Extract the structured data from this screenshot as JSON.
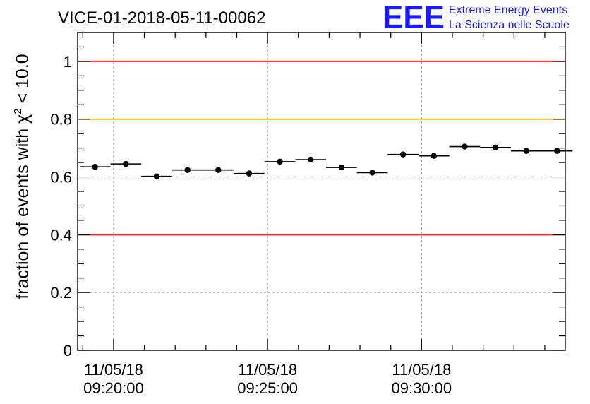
{
  "chart_data": {
    "type": "scatter",
    "title": "VICE-01-2018-05-11-00062",
    "ylabel_text": "fraction of events with ",
    "ylabel_symbol": "χ",
    "ylabel_sup": "2",
    "ylabel_tail": " < 10.0",
    "ylim": [
      0,
      1.1
    ],
    "y_ticks": [
      "0",
      "0.2",
      "0.4",
      "0.6",
      "0.8",
      "1"
    ],
    "x_ticks": [
      {
        "date": "11/05/18",
        "time": "09:20:00"
      },
      {
        "date": "11/05/18",
        "time": "09:25:00"
      },
      {
        "date": "11/05/18",
        "time": "09:30:00"
      }
    ],
    "grid": true,
    "reference_lines": [
      {
        "y": 1.0,
        "color": "#e8251f"
      },
      {
        "y": 0.8,
        "color": "#ffc20e"
      },
      {
        "y": 0.4,
        "color": "#e8251f"
      }
    ],
    "points": [
      {
        "x_start": "09:18:54",
        "x_end": "09:19:54",
        "y": 0.635
      },
      {
        "x_start": "09:19:54",
        "x_end": "09:20:54",
        "y": 0.645
      },
      {
        "x_start": "09:20:54",
        "x_end": "09:21:54",
        "y": 0.602
      },
      {
        "x_start": "09:21:54",
        "x_end": "09:22:54",
        "y": 0.624
      },
      {
        "x_start": "09:22:54",
        "x_end": "09:23:54",
        "y": 0.624
      },
      {
        "x_start": "09:23:54",
        "x_end": "09:24:54",
        "y": 0.612
      },
      {
        "x_start": "09:24:54",
        "x_end": "09:25:54",
        "y": 0.653
      },
      {
        "x_start": "09:25:54",
        "x_end": "09:26:54",
        "y": 0.66
      },
      {
        "x_start": "09:26:54",
        "x_end": "09:27:54",
        "y": 0.633
      },
      {
        "x_start": "09:27:54",
        "x_end": "09:28:54",
        "y": 0.615
      },
      {
        "x_start": "09:28:54",
        "x_end": "09:29:54",
        "y": 0.678
      },
      {
        "x_start": "09:29:54",
        "x_end": "09:30:54",
        "y": 0.673
      },
      {
        "x_start": "09:30:54",
        "x_end": "09:31:54",
        "y": 0.705
      },
      {
        "x_start": "09:31:54",
        "x_end": "09:32:54",
        "y": 0.702
      },
      {
        "x_start": "09:32:54",
        "x_end": "09:33:54",
        "y": 0.69
      },
      {
        "x_start": "09:33:54",
        "x_end": "09:34:54",
        "y": 0.69
      }
    ]
  },
  "logo": {
    "mark": "EEE",
    "line1": "Extreme Energy Events",
    "line2": "La Scienza nelle Scuole",
    "color": "#1a1aff"
  }
}
